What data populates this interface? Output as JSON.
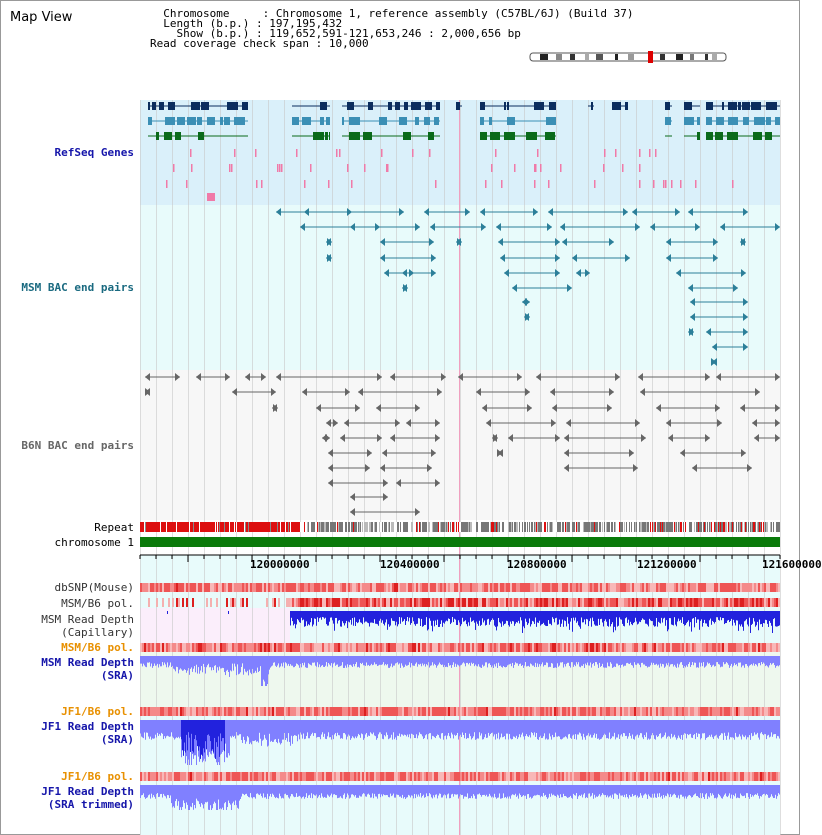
{
  "page": {
    "title": "Map View"
  },
  "info": {
    "chromosome_key": "Chromosome",
    "chromosome_val": "Chromosome 1, reference assembly (C57BL/6J) (Build 37)",
    "length_key": "Length (b.p.)",
    "length_val": "197,195,432",
    "show_key": "Show (b.p.)",
    "show_val": "119,652,591-121,653,246 : 2,000,656 bp",
    "coverage_key": "Read coverage check span",
    "coverage_val": "10,000"
  },
  "tracks": {
    "refseq": "RefSeq Genes",
    "msm_bac": "MSM BAC end pairs",
    "b6n_bac": "B6N BAC end pairs",
    "repeat": "Repeat",
    "chromosome": "chromosome 1",
    "dbsnp": "dbSNP(Mouse)",
    "msm_b6_pol_1": "MSM/B6 pol.",
    "msm_read_depth_cap_1": "MSM Read Depth",
    "msm_read_depth_cap_2": "(Capillary)",
    "msm_b6_pol_2": "MSM/B6 pol.",
    "msm_read_depth_sra_1": "MSM Read Depth",
    "msm_read_depth_sra_2": "(SRA)",
    "jf1_b6_pol_1": "JF1/B6 pol.",
    "jf1_read_depth_sra_1": "JF1 Read Depth",
    "jf1_read_depth_sra_2": "(SRA)",
    "jf1_b6_pol_2": "JF1/B6 pol.",
    "jf1_read_depth_trim_1": "JF1 Read Depth",
    "jf1_read_depth_trim_2": "(SRA trimmed)"
  },
  "axis": {
    "ticks": [
      "120000000",
      "120400000",
      "120800000",
      "121200000",
      "121600000"
    ]
  },
  "colors": {
    "refseq_bg": "#daf0fa",
    "msm_bg": "#e8fbfb",
    "b6n_bg": "#f6f6f6",
    "gene_dark": "#0b2d5e",
    "gene_mid": "#3b8fb5",
    "gene_green": "#0a6a1a",
    "msm_line": "#2c7f99",
    "b6n_line": "#666666",
    "repeat_red": "#dd1111",
    "chrom_green": "#0a7a0a",
    "depth_blue": "#2222dd",
    "depth_light": "#8080ff",
    "label_blue": "#1515aa",
    "label_teal": "#1a6a80",
    "label_orange": "#e89000"
  }
}
